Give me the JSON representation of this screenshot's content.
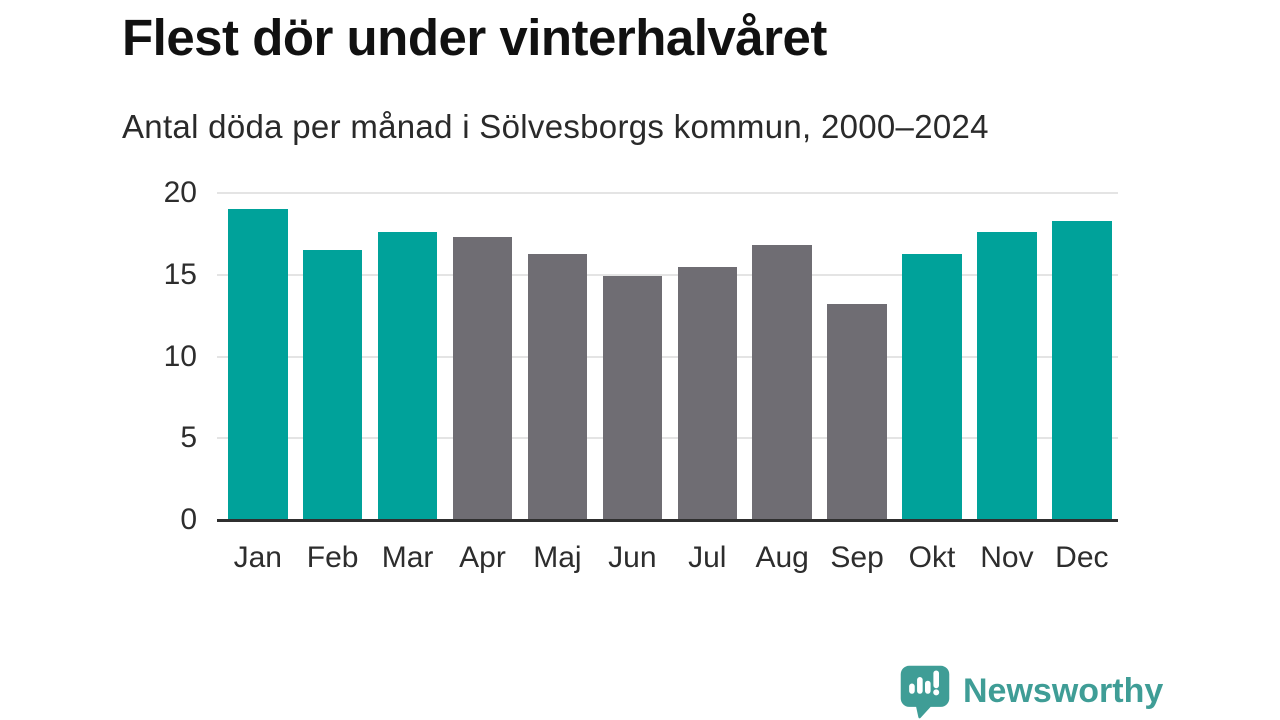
{
  "title": "Flest dör under vinterhalvåret",
  "subtitle": "Antal döda per månad i Sölvesborgs kommun, 2000–2024",
  "chart_data": {
    "type": "bar",
    "categories": [
      "Jan",
      "Feb",
      "Mar",
      "Apr",
      "Maj",
      "Jun",
      "Jul",
      "Aug",
      "Sep",
      "Okt",
      "Nov",
      "Dec"
    ],
    "values": [
      19.0,
      16.5,
      17.6,
      17.3,
      16.3,
      14.9,
      15.5,
      16.8,
      13.2,
      16.3,
      17.6,
      18.3
    ],
    "bar_color_keys": [
      "teal",
      "teal",
      "teal",
      "gray",
      "gray",
      "gray",
      "gray",
      "gray",
      "gray",
      "teal",
      "teal",
      "teal"
    ],
    "title": "Flest dör under vinterhalvåret",
    "subtitle": "Antal döda per månad i Sölvesborgs kommun, 2000–2024",
    "xlabel": "",
    "ylabel": "",
    "ylim": [
      0,
      20
    ],
    "yticks": [
      0,
      5,
      10,
      15,
      20
    ],
    "grid": true,
    "legend": "none",
    "colors": {
      "teal": "#00a29a",
      "gray": "#6f6d73",
      "gridline": "#e4e4e4",
      "axis_line": "#2f2f2f",
      "tick_text": "#2d2d2d"
    }
  },
  "footer": {
    "brand": "Newsworthy",
    "brand_color": "#3f9d96",
    "icon": "bar-chart-speech-bubble-icon"
  }
}
